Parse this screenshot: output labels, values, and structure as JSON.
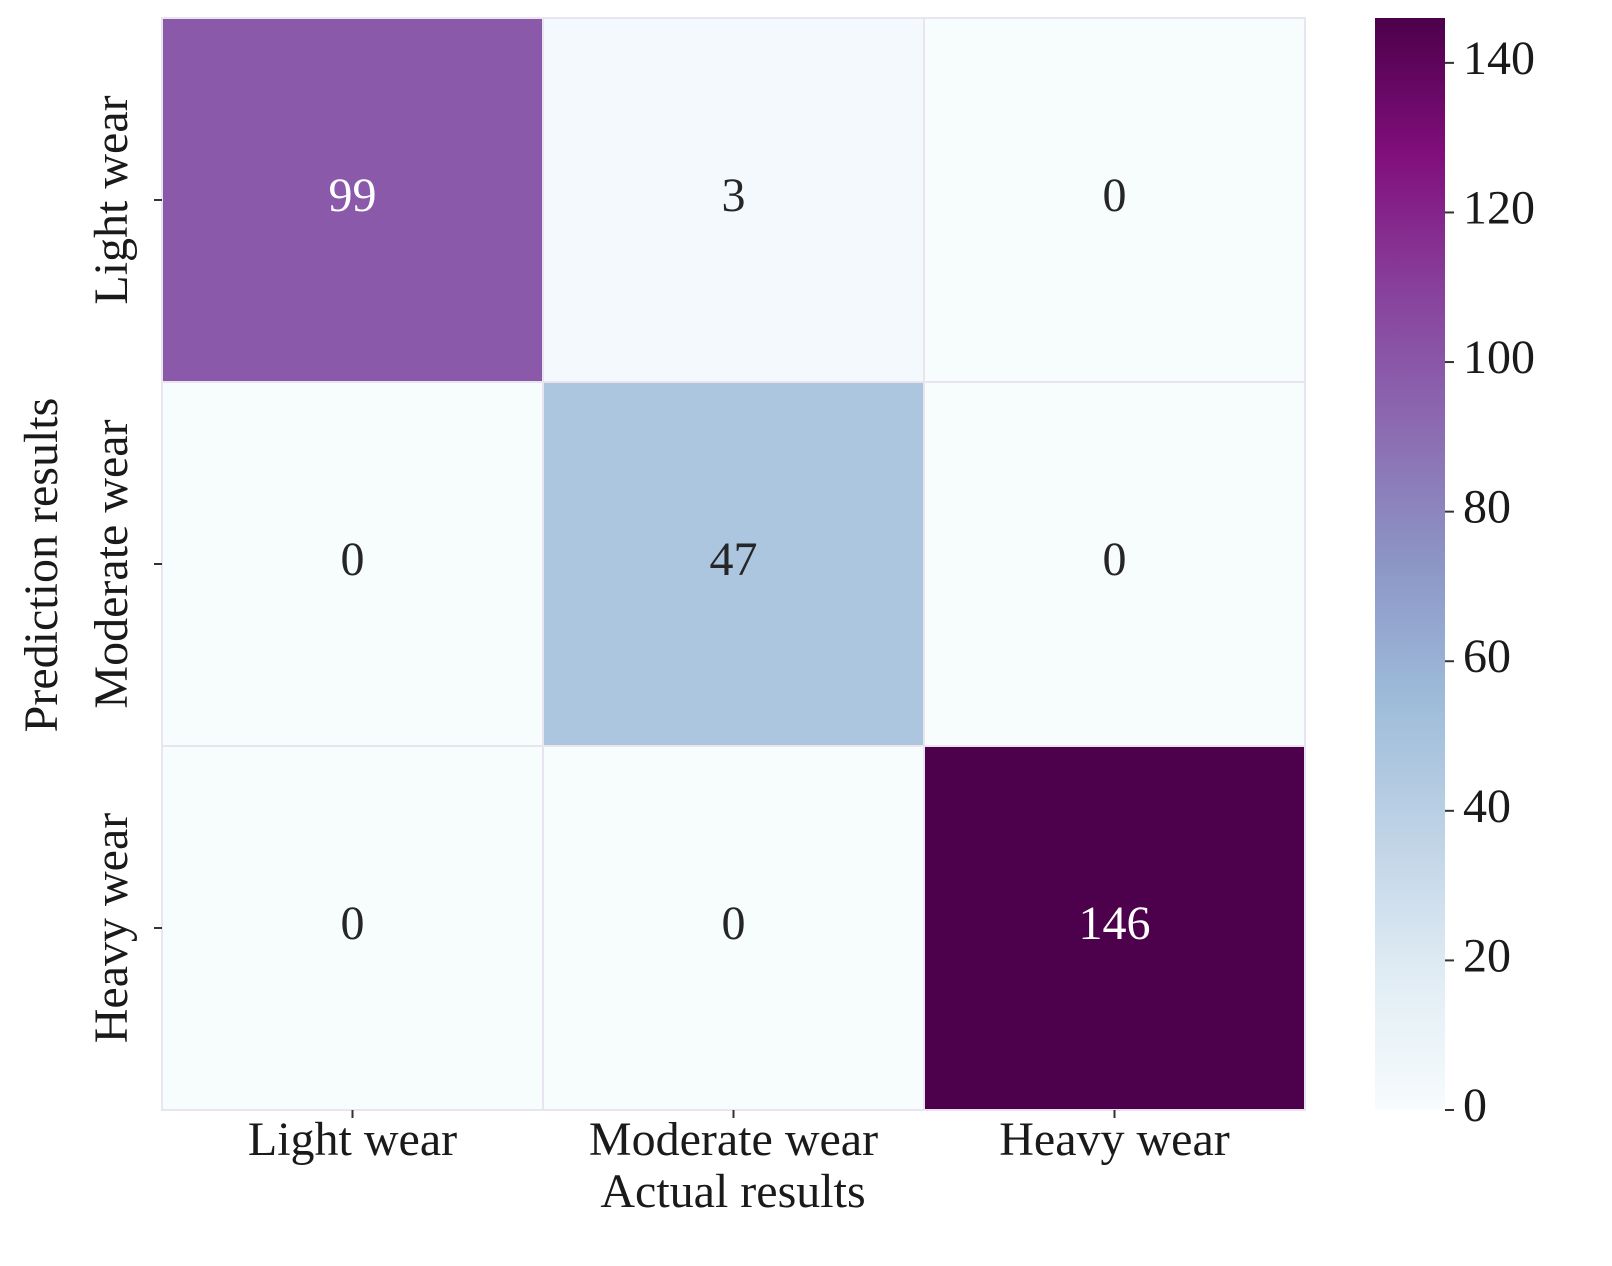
{
  "chart_data": {
    "type": "heatmap",
    "xlabel": "Actual results",
    "ylabel": "Prediction results",
    "x_categories": [
      "Light wear",
      "Moderate wear",
      "Heavy wear"
    ],
    "y_categories": [
      "Light wear",
      "Moderate wear",
      "Heavy wear"
    ],
    "values": [
      [
        99,
        3,
        0
      ],
      [
        0,
        47,
        0
      ],
      [
        0,
        0,
        146
      ]
    ],
    "clim": [
      0,
      146
    ],
    "cticks": [
      0,
      20,
      40,
      60,
      80,
      100,
      120,
      140
    ],
    "colormap": [
      "#f7fcfd",
      "#e0ecf4",
      "#bfd3e6",
      "#9ebcda",
      "#8c96c6",
      "#8c6bb1",
      "#88419d",
      "#810f7c",
      "#4d004b"
    ]
  }
}
